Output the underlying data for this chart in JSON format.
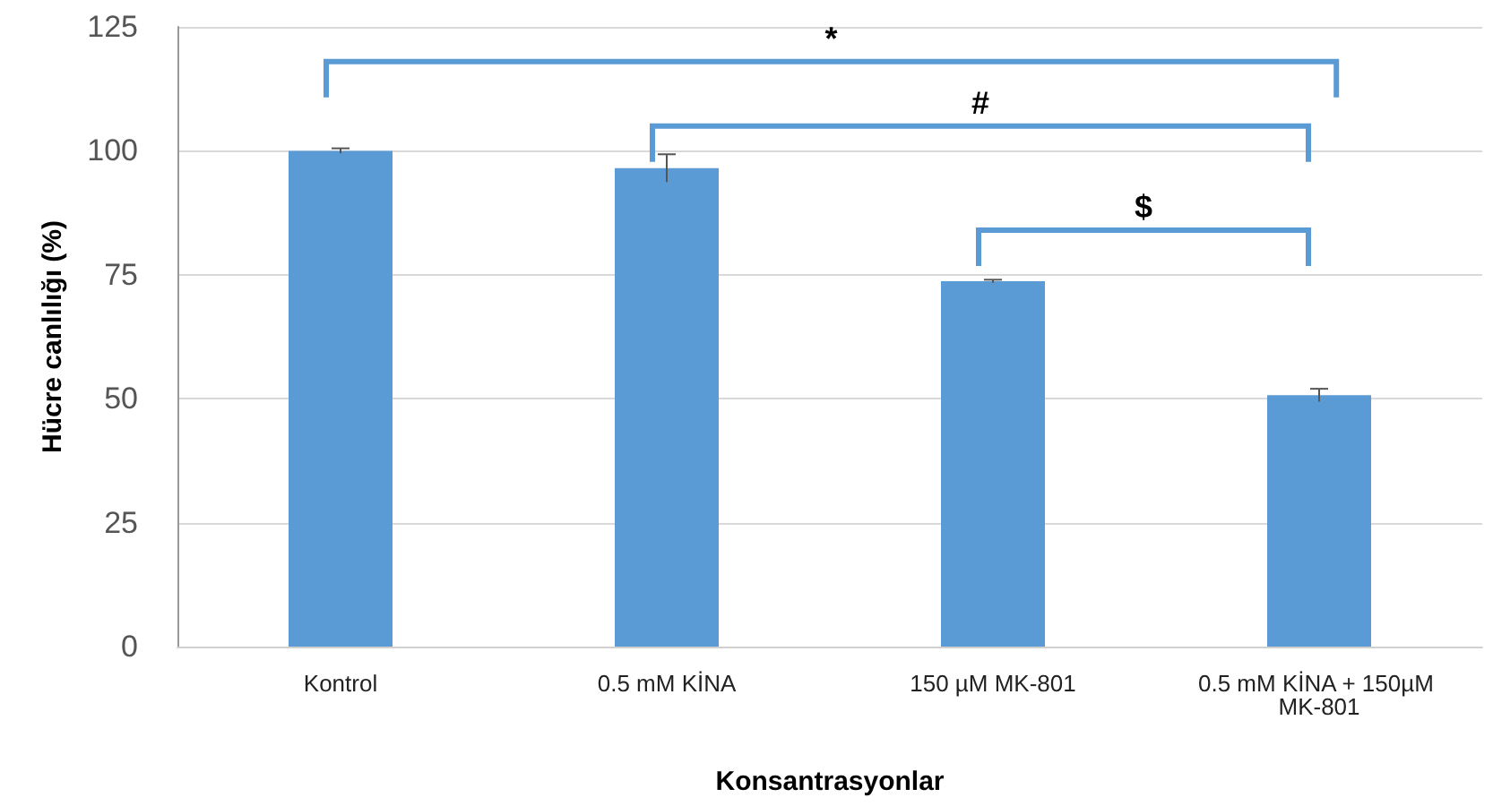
{
  "chart_data": {
    "type": "bar",
    "xlabel": "Konsantrasyonlar",
    "ylabel": "Hücre canlılığı (%)",
    "categories": [
      "Kontrol",
      "0.5 mM KİNA",
      "150 µM MK-801",
      "0.5 mM KİNA + 150µM MK-801"
    ],
    "values": [
      100,
      96.5,
      73.7,
      50.7
    ],
    "errors": [
      0.5,
      2.8,
      0.3,
      1.3
    ],
    "color": "#5b9bd5",
    "ylim": [
      0,
      125
    ],
    "yticks": [
      0,
      25,
      50,
      75,
      100,
      125
    ],
    "grid": "y",
    "annotations": [
      "*",
      "#",
      "$"
    ]
  }
}
